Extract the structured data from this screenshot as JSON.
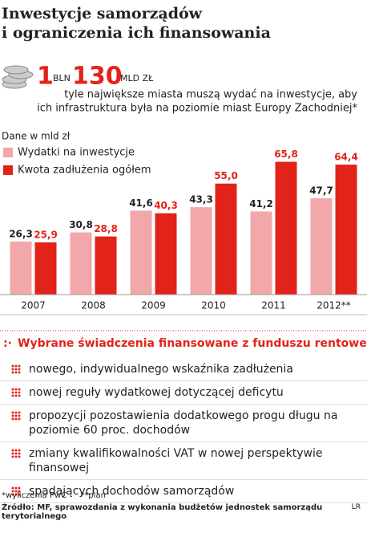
{
  "header": {
    "title_line_1": "Inwestycje samorządów",
    "title_line_2": "i ograniczenia ich finansowania",
    "amount_1": "1",
    "unit_1": "BLN",
    "amount_2": "130",
    "unit_2": "MLD ZŁ",
    "subtitle_line_1": "tyle największe miasta muszą wydać na inwestycje, aby",
    "subtitle_line_2": "ich infrastruktura była na poziomie miast Europy Zachodniej*"
  },
  "chart_data": {
    "type": "bar",
    "subtitle": "Dane w mld zł",
    "categories": [
      "2007",
      "2008",
      "2009",
      "2010",
      "2011",
      "2012**"
    ],
    "series": [
      {
        "name": "Wydatki na inwestycje",
        "color": "#f2a7aa",
        "label_color": "#222222",
        "values": [
          26.3,
          30.8,
          41.6,
          43.3,
          41.2,
          47.7
        ],
        "value_labels": [
          "26,3",
          "30,8",
          "41,6",
          "43,3",
          "41,2",
          "47,7"
        ]
      },
      {
        "name": "Kwota zadłużenia ogółem",
        "color": "#e2231a",
        "label_color": "#e2231a",
        "values": [
          25.9,
          28.8,
          40.3,
          55.0,
          65.8,
          64.4
        ],
        "value_labels": [
          "25,9",
          "28,8",
          "40,3",
          "55,0",
          "65,8",
          "64,4"
        ]
      }
    ],
    "ylim": [
      0,
      70
    ]
  },
  "list": {
    "title": "Wybrane świadczenia finansowane z funduszu rentowego",
    "items": [
      "nowego, indywidualnego wskaźnika zadłużenia",
      "nowej reguły wydatkowej dotyczącej deficytu",
      "propozycji pozostawienia dodatkowego progu długu na poziomie 60 proc. dochodów",
      "zmiany kwalifikowalności VAT w nowej perspektywie finansowej",
      "spadających dochodów samorządów"
    ]
  },
  "footer": {
    "note_1": "*wyliczenia PwC",
    "note_2": "**plan",
    "source": "Źródło: MF, sprawozdania z wykonania budżetów jednostek samorządu terytorialnego",
    "credit": "LR"
  }
}
